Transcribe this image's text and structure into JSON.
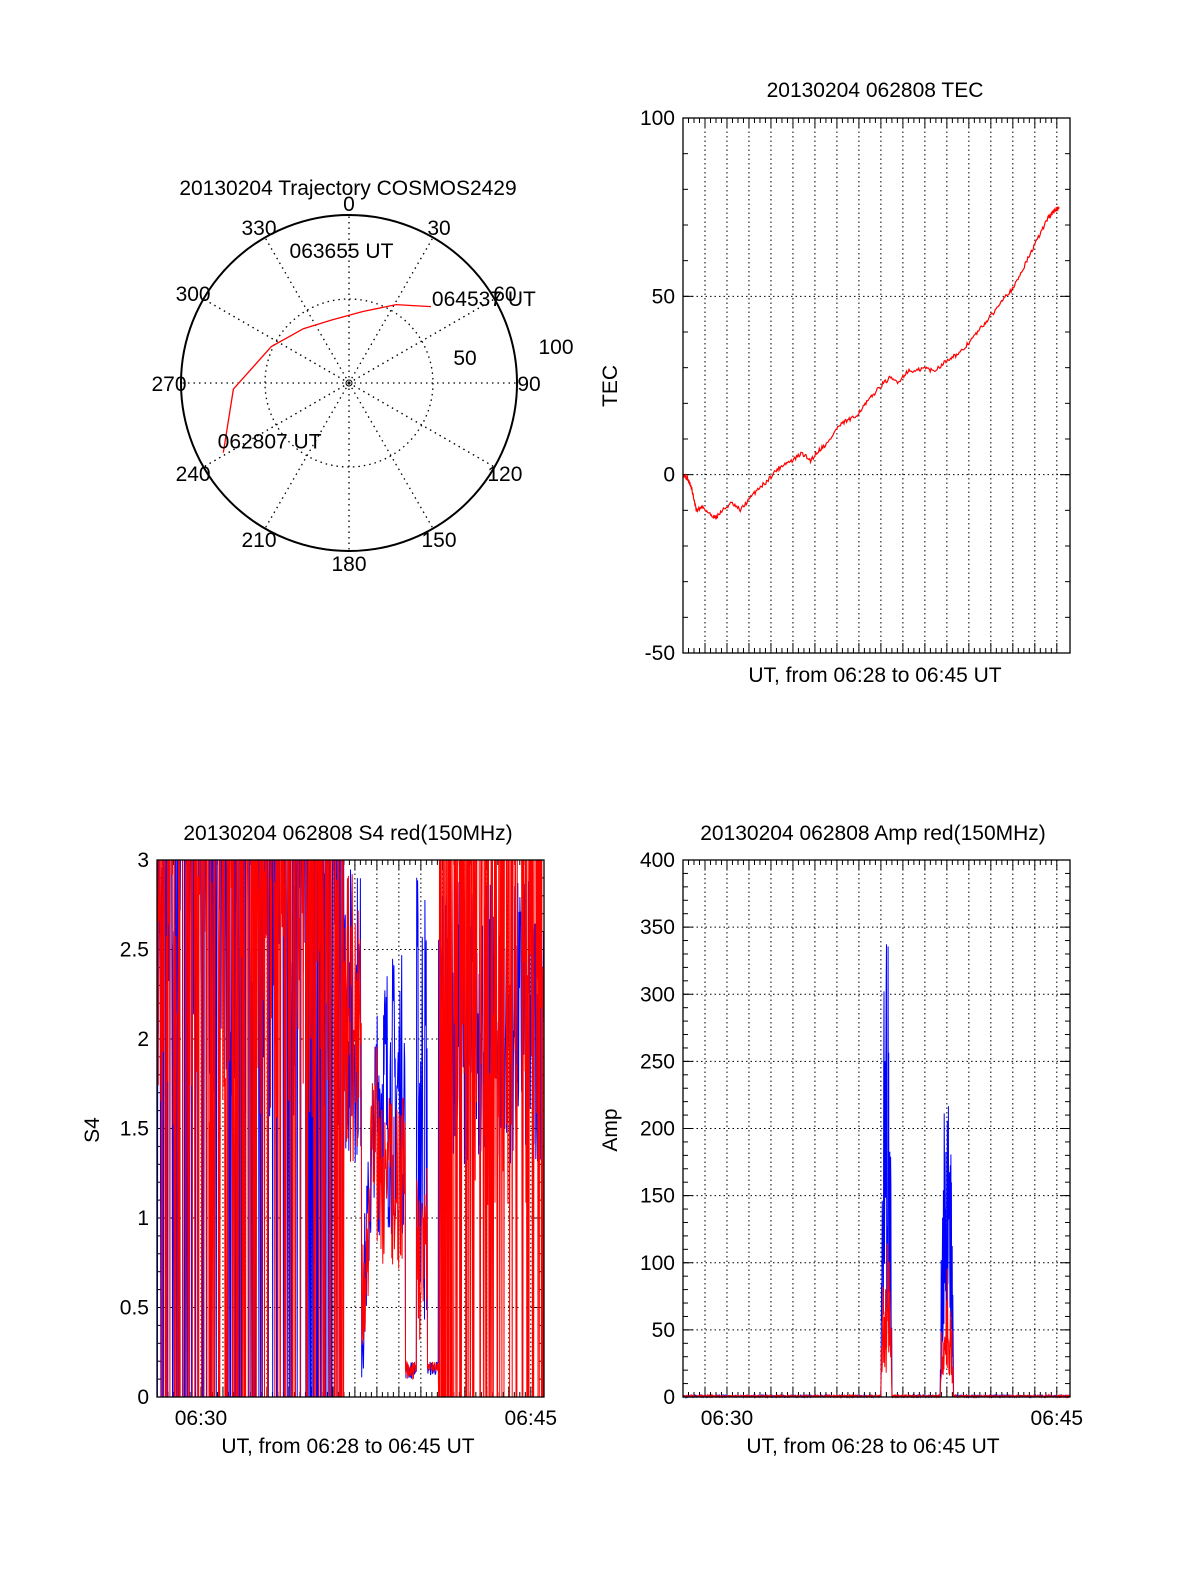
{
  "colors": {
    "red": "#ff0000",
    "blue": "#0000ff",
    "axis": "#000000",
    "grid": "#000000"
  },
  "chart_data": [
    {
      "id": "polar",
      "type": "polar-trajectory",
      "title": "20130204 Trajectory COSMOS2429",
      "azimuth_labels": [
        "0",
        "30",
        "60",
        "90",
        "120",
        "150",
        "180",
        "210",
        "240",
        "270",
        "300",
        "330"
      ],
      "radial_labels": [
        "50",
        "100"
      ],
      "elevation_range": [
        0,
        90
      ],
      "grid": true,
      "series": [
        {
          "color": "#ff0000",
          "points": [
            {
              "az": 241,
              "el": 13
            },
            {
              "az": 267,
              "el": 28
            },
            {
              "az": 295,
              "el": 44
            },
            {
              "az": 320,
              "el": 52
            },
            {
              "az": 345,
              "el": 55
            },
            {
              "az": 11,
              "el": 51
            },
            {
              "az": 31,
              "el": 41
            },
            {
              "az": 47,
              "el": 30
            }
          ]
        }
      ],
      "annotations": [
        {
          "text": "064537 UT",
          "az": 46,
          "el": 29
        },
        {
          "text": "063655 UT",
          "az": 358,
          "el": 52
        },
        {
          "text": "062807 UT",
          "az": 241,
          "el": 12
        }
      ]
    },
    {
      "id": "tec",
      "type": "line",
      "title": "20130204 062808 TEC",
      "xlabel": "UT, from 06:28 to 06:45 UT",
      "ylabel": "TEC",
      "ylim": [
        -50,
        100
      ],
      "yticks": [
        "-50",
        "0",
        "50",
        "100"
      ],
      "xticks": [],
      "grid": true,
      "series": [
        {
          "color": "#ff0000",
          "points": [
            [
              0.0,
              0
            ],
            [
              0.2,
              -1
            ],
            [
              0.4,
              -4
            ],
            [
              0.6,
              -10
            ],
            [
              0.9,
              -9
            ],
            [
              1.2,
              -11
            ],
            [
              1.5,
              -12
            ],
            [
              1.8,
              -10
            ],
            [
              2.2,
              -8
            ],
            [
              2.6,
              -10
            ],
            [
              3.0,
              -7
            ],
            [
              3.4,
              -4
            ],
            [
              3.8,
              -2
            ],
            [
              4.2,
              1
            ],
            [
              4.6,
              3
            ],
            [
              5.0,
              4
            ],
            [
              5.4,
              6
            ],
            [
              5.8,
              4
            ],
            [
              6.2,
              7
            ],
            [
              6.6,
              9
            ],
            [
              7.0,
              13
            ],
            [
              7.4,
              15
            ],
            [
              7.8,
              16
            ],
            [
              8.2,
              19
            ],
            [
              8.6,
              22
            ],
            [
              9.0,
              25
            ],
            [
              9.4,
              27
            ],
            [
              9.8,
              26
            ],
            [
              10.2,
              29
            ],
            [
              10.6,
              29
            ],
            [
              11.0,
              30
            ],
            [
              11.4,
              29
            ],
            [
              11.8,
              31
            ],
            [
              12.2,
              33
            ],
            [
              12.6,
              34
            ],
            [
              13.0,
              37
            ],
            [
              13.4,
              40
            ],
            [
              13.8,
              43
            ],
            [
              14.2,
              46
            ],
            [
              14.6,
              50
            ],
            [
              15.0,
              52
            ],
            [
              15.4,
              57
            ],
            [
              15.8,
              62
            ],
            [
              16.2,
              67
            ],
            [
              16.6,
              72
            ],
            [
              16.9,
              74
            ],
            [
              17.1,
              75
            ]
          ]
        }
      ]
    },
    {
      "id": "s4",
      "type": "line",
      "title": "20130204 062808 S4 red(150MHz)",
      "xlabel": "UT, from 06:28 to 06:45 UT",
      "ylabel": "S4",
      "ylim": [
        0,
        3
      ],
      "yticks": [
        "0",
        "0.5",
        "1",
        "1.5",
        "2",
        "2.5",
        "3"
      ],
      "xticks": [
        {
          "label": "06:30",
          "t": 2.0
        },
        {
          "label": "06:45",
          "t": 17.0
        }
      ],
      "grid": true,
      "series": [
        {
          "color": "#0000ff",
          "seed": 7,
          "profile": "s4"
        },
        {
          "color": "#ff0000",
          "seed": 13,
          "profile": "s4"
        }
      ]
    },
    {
      "id": "amp",
      "type": "line",
      "title": "20130204 062808 Amp red(150MHz)",
      "xlabel": "UT, from 06:28 to 06:45 UT",
      "ylabel": "Amp",
      "ylim": [
        0,
        400
      ],
      "yticks": [
        "0",
        "50",
        "100",
        "150",
        "200",
        "250",
        "300",
        "350",
        "400"
      ],
      "xticks": [
        {
          "label": "06:30",
          "t": 2.0
        },
        {
          "label": "06:45",
          "t": 17.0
        }
      ],
      "grid": true,
      "series": [
        {
          "color": "#0000ff",
          "peak1": 380,
          "peak2": 260,
          "base1": 120,
          "base2": 150
        },
        {
          "color": "#ff0000",
          "peak1": 140,
          "peak2": 100,
          "base1": 50,
          "base2": 70
        }
      ]
    }
  ]
}
